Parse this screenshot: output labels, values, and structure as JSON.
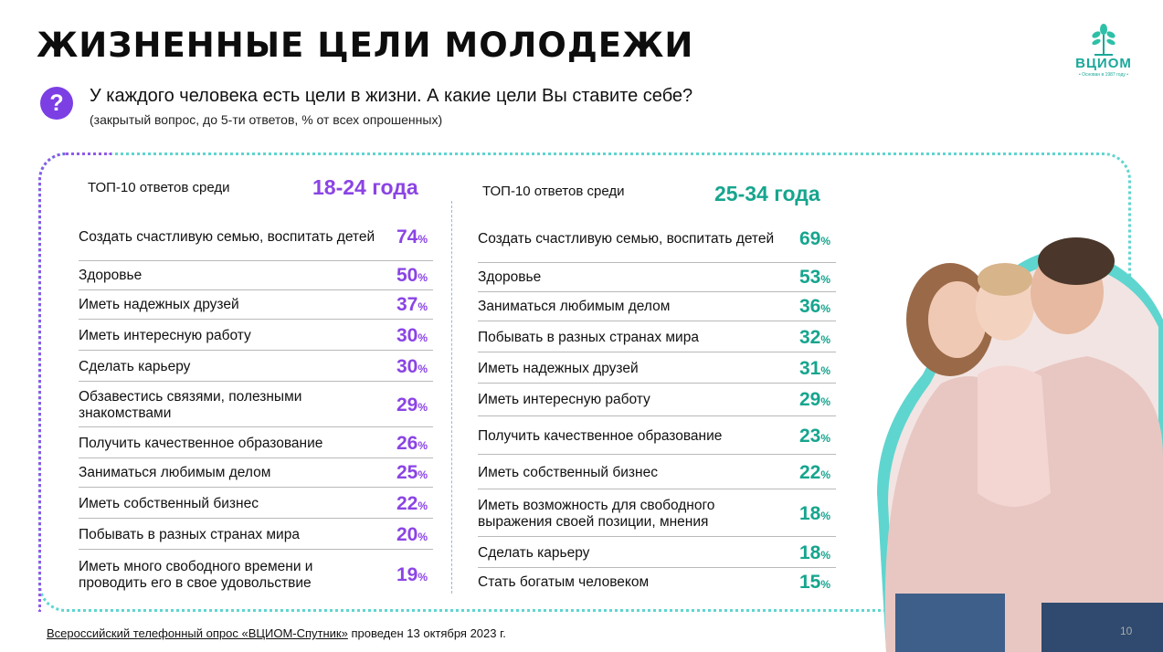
{
  "title": "ЖИЗНЕННЫЕ ЦЕЛИ МОЛОДЕЖИ",
  "logo": {
    "name": "ВЦИОМ",
    "tagline": "• Основан в 1987 году •"
  },
  "question": {
    "icon": "question-mark-icon",
    "text": "У каждого человека есть цели в жизни. А какие цели Вы ставите себе?",
    "note": "(закрытый вопрос, до 5-ти ответов, % от всех опрошенных)"
  },
  "colors": {
    "left_accent": "#8b44e4",
    "right_accent": "#16a58e",
    "frame": "#5fd5cf"
  },
  "chart_data": [
    {
      "type": "table",
      "header_label": "ТОП-10 ответов среди",
      "age_group": "18-24 года",
      "unit": "%",
      "rows": [
        {
          "label": "Создать счастливую семью, воспитать детей",
          "value": 74
        },
        {
          "label": "Здоровье",
          "value": 50
        },
        {
          "label": "Иметь надежных друзей",
          "value": 37
        },
        {
          "label": "Иметь интересную работу",
          "value": 30
        },
        {
          "label": "Сделать карьеру",
          "value": 30
        },
        {
          "label": "Обзавестись связями, полезными знакомствами",
          "value": 29
        },
        {
          "label": "Получить качественное образование",
          "value": 26
        },
        {
          "label": "Заниматься любимым делом",
          "value": 25
        },
        {
          "label": "Иметь собственный бизнес",
          "value": 22
        },
        {
          "label": "Побывать в разных странах мира",
          "value": 20
        },
        {
          "label": "Иметь много свободного времени и проводить его в свое удовольствие",
          "value": 19
        }
      ]
    },
    {
      "type": "table",
      "header_label": "ТОП-10 ответов среди",
      "age_group": "25-34 года",
      "unit": "%",
      "rows": [
        {
          "label": "Создать счастливую семью, воспитать детей",
          "value": 69
        },
        {
          "label": "Здоровье",
          "value": 53
        },
        {
          "label": "Заниматься любимым делом",
          "value": 36
        },
        {
          "label": "Побывать в разных странах мира",
          "value": 32
        },
        {
          "label": "Иметь надежных друзей",
          "value": 31
        },
        {
          "label": "Иметь интересную работу",
          "value": 29
        },
        {
          "label": "Получить качественное образование",
          "value": 23
        },
        {
          "label": "Иметь собственный бизнес",
          "value": 22
        },
        {
          "label": "Иметь возможность для свободного выражения своей позиции, мнения",
          "value": 18
        },
        {
          "label": "Сделать карьеру",
          "value": 18
        },
        {
          "label": "Стать богатым человеком",
          "value": 15
        }
      ]
    }
  ],
  "footnote": {
    "link_text": "Всероссийский телефонный опрос «ВЦИОМ-Спутник»",
    "rest": " проведен 13 октября 2023 г."
  },
  "page_number": "10"
}
